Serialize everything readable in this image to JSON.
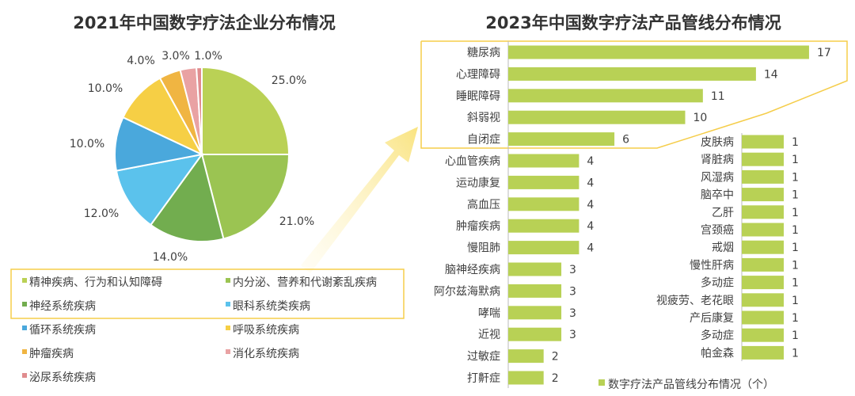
{
  "chart_data": [
    {
      "type": "pie",
      "title": "2021年中国数字疗法企业分布情况",
      "categories": [
        "精神疾病、行为和认知障碍",
        "内分泌、营养和代谢紊乱疾病",
        "神经系统疾病",
        "眼科系统类疾病",
        "循环系统疾病",
        "呼吸系统疾病",
        "肿瘤疾病",
        "消化系统疾病",
        "泌尿系统疾病"
      ],
      "values": [
        25.0,
        21.0,
        14.0,
        12.0,
        10.0,
        10.0,
        4.0,
        3.0,
        1.0
      ],
      "labels": [
        "25.0%",
        "21.0%",
        "14.0%",
        "12.0%",
        "10.0%",
        "10.0%",
        "4.0%",
        "3.0%",
        "1.0%"
      ],
      "colors": [
        "#bad155",
        "#9bc452",
        "#72ad4f",
        "#5bc2ec",
        "#4aa8dc",
        "#f6cf45",
        "#f0b542",
        "#e9a2a3",
        "#e08c8e"
      ],
      "legend": "bottom",
      "highlighted_categories": [
        "精神疾病、行为和认知障碍",
        "内分泌、营养和代谢紊乱疾病",
        "神经系统疾病",
        "眼科系统类疾病"
      ]
    },
    {
      "type": "bar",
      "orientation": "horizontal",
      "title": "2023年中国数字疗法产品管线分布情况",
      "series_name": "数字疗法产品管线分布情况（个）",
      "color": "#b8d155",
      "highlight_color": "#f5cd4a",
      "categories": [
        "糖尿病",
        "心理障碍",
        "睡眠障碍",
        "斜弱视",
        "自闭症",
        "心血管疾病",
        "运动康复",
        "高血压",
        "肿瘤疾病",
        "慢阻肺",
        "脑神经疾病",
        "阿尔兹海默病",
        "哮喘",
        "近视",
        "过敏症",
        "打鼾症",
        "皮肤病",
        "肾脏病",
        "风湿病",
        "脑卒中",
        "乙肝",
        "宫颈癌",
        "戒烟",
        "慢性肝病",
        "多动症",
        "视疲劳、老花眼",
        "产后康复",
        "多动症",
        "帕金森"
      ],
      "values": [
        17,
        14,
        11,
        10,
        6,
        4,
        4,
        4,
        4,
        4,
        3,
        3,
        3,
        3,
        2,
        2,
        1,
        1,
        1,
        1,
        1,
        1,
        1,
        1,
        1,
        1,
        1,
        1,
        1
      ],
      "highlighted_categories": [
        "糖尿病",
        "心理障碍",
        "睡眠障碍",
        "斜弱视",
        "自闭症"
      ]
    }
  ]
}
